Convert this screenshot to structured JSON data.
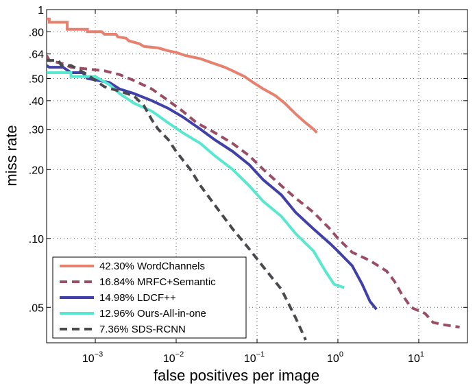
{
  "chart_data": {
    "type": "line",
    "xscale": "log",
    "yscale": "log",
    "xlabel": "false positives per image",
    "ylabel": "miss rate",
    "xlim": [
      0.00025,
      40
    ],
    "ylim": [
      0.035,
      1
    ],
    "x_ticks": [
      {
        "value": 0.001,
        "base": "10",
        "exp": "−3"
      },
      {
        "value": 0.01,
        "base": "10",
        "exp": "−2"
      },
      {
        "value": 0.1,
        "base": "10",
        "exp": "−1"
      },
      {
        "value": 1,
        "base": "10",
        "exp": "0"
      },
      {
        "value": 10,
        "base": "10",
        "exp": "1"
      }
    ],
    "y_ticks": [
      {
        "value": 1,
        "label": "1"
      },
      {
        "value": 0.8,
        "label": ".80"
      },
      {
        "value": 0.64,
        "label": ".64"
      },
      {
        "value": 0.5,
        "label": ".50"
      },
      {
        "value": 0.4,
        "label": ".40"
      },
      {
        "value": 0.3,
        "label": ".30"
      },
      {
        "value": 0.2,
        "label": ".20"
      },
      {
        "value": 0.1,
        "label": ".10"
      },
      {
        "value": 0.05,
        "label": ".05"
      }
    ],
    "series": [
      {
        "name": "42.30% WordChannels",
        "color": "#e8806e",
        "dash": "solid",
        "points": [
          [
            0.00025,
            0.91
          ],
          [
            0.00027,
            0.91
          ],
          [
            0.00027,
            0.88
          ],
          [
            0.00045,
            0.88
          ],
          [
            0.00045,
            0.82
          ],
          [
            0.0008,
            0.82
          ],
          [
            0.0008,
            0.8
          ],
          [
            0.0012,
            0.8
          ],
          [
            0.0013,
            0.78
          ],
          [
            0.0018,
            0.78
          ],
          [
            0.0019,
            0.76
          ],
          [
            0.0024,
            0.75
          ],
          [
            0.0026,
            0.73
          ],
          [
            0.0035,
            0.71
          ],
          [
            0.004,
            0.69
          ],
          [
            0.006,
            0.68
          ],
          [
            0.008,
            0.66
          ],
          [
            0.01,
            0.65
          ],
          [
            0.013,
            0.63
          ],
          [
            0.02,
            0.61
          ],
          [
            0.03,
            0.58
          ],
          [
            0.04,
            0.56
          ],
          [
            0.05,
            0.54
          ],
          [
            0.07,
            0.51
          ],
          [
            0.09,
            0.48
          ],
          [
            0.12,
            0.45
          ],
          [
            0.17,
            0.42
          ],
          [
            0.22,
            0.39
          ],
          [
            0.3,
            0.35
          ],
          [
            0.4,
            0.32
          ],
          [
            0.5,
            0.3
          ],
          [
            0.55,
            0.29
          ]
        ]
      },
      {
        "name": "16.84% MRFC+Semantic",
        "color": "#9a4e64",
        "dash": "dashed",
        "points": [
          [
            0.00025,
            0.63
          ],
          [
            0.00027,
            0.6
          ],
          [
            0.0004,
            0.58
          ],
          [
            0.0005,
            0.56
          ],
          [
            0.0013,
            0.54
          ],
          [
            0.002,
            0.52
          ],
          [
            0.003,
            0.49
          ],
          [
            0.005,
            0.45
          ],
          [
            0.008,
            0.4
          ],
          [
            0.012,
            0.36
          ],
          [
            0.018,
            0.32
          ],
          [
            0.03,
            0.29
          ],
          [
            0.05,
            0.26
          ],
          [
            0.08,
            0.23
          ],
          [
            0.12,
            0.2
          ],
          [
            0.2,
            0.17
          ],
          [
            0.3,
            0.15
          ],
          [
            0.5,
            0.13
          ],
          [
            0.8,
            0.11
          ],
          [
            1.0,
            0.1
          ],
          [
            1.5,
            0.087
          ],
          [
            2.5,
            0.08
          ],
          [
            4.0,
            0.072
          ],
          [
            5.0,
            0.065
          ],
          [
            6.0,
            0.058
          ],
          [
            8.0,
            0.05
          ],
          [
            12,
            0.047
          ],
          [
            15,
            0.043
          ],
          [
            20,
            0.042
          ],
          [
            32,
            0.041
          ]
        ]
      },
      {
        "name": "14.98% LDCF++",
        "color": "#4040a8",
        "dash": "solid",
        "points": [
          [
            0.00025,
            0.57
          ],
          [
            0.00027,
            0.56
          ],
          [
            0.0004,
            0.56
          ],
          [
            0.0005,
            0.53
          ],
          [
            0.0007,
            0.53
          ],
          [
            0.0008,
            0.5
          ],
          [
            0.0015,
            0.48
          ],
          [
            0.002,
            0.45
          ],
          [
            0.003,
            0.43
          ],
          [
            0.005,
            0.4
          ],
          [
            0.008,
            0.37
          ],
          [
            0.012,
            0.34
          ],
          [
            0.02,
            0.3
          ],
          [
            0.03,
            0.27
          ],
          [
            0.05,
            0.24
          ],
          [
            0.08,
            0.21
          ],
          [
            0.12,
            0.18
          ],
          [
            0.2,
            0.155
          ],
          [
            0.3,
            0.13
          ],
          [
            0.5,
            0.11
          ],
          [
            0.8,
            0.095
          ],
          [
            1.0,
            0.088
          ],
          [
            1.5,
            0.076
          ],
          [
            2.0,
            0.063
          ],
          [
            2.5,
            0.053
          ],
          [
            3.0,
            0.049
          ]
        ]
      },
      {
        "name": "12.96% Ours-All-in-one",
        "color": "#58e8d0",
        "dash": "solid",
        "points": [
          [
            0.00025,
            0.53
          ],
          [
            0.0005,
            0.53
          ],
          [
            0.0005,
            0.51
          ],
          [
            0.001,
            0.51
          ],
          [
            0.0015,
            0.47
          ],
          [
            0.002,
            0.43
          ],
          [
            0.003,
            0.39
          ],
          [
            0.005,
            0.36
          ],
          [
            0.008,
            0.32
          ],
          [
            0.012,
            0.29
          ],
          [
            0.02,
            0.26
          ],
          [
            0.03,
            0.23
          ],
          [
            0.05,
            0.2
          ],
          [
            0.08,
            0.17
          ],
          [
            0.12,
            0.145
          ],
          [
            0.2,
            0.125
          ],
          [
            0.3,
            0.105
          ],
          [
            0.5,
            0.088
          ],
          [
            0.7,
            0.072
          ],
          [
            0.9,
            0.063
          ],
          [
            1.2,
            0.061
          ]
        ]
      },
      {
        "name": "7.36% SDS-RCNN",
        "color": "#4a4a4e",
        "dash": "dashed",
        "points": [
          [
            0.00025,
            0.6
          ],
          [
            0.00035,
            0.6
          ],
          [
            0.00038,
            0.57
          ],
          [
            0.0005,
            0.57
          ],
          [
            0.0006,
            0.55
          ],
          [
            0.0008,
            0.52
          ],
          [
            0.001,
            0.49
          ],
          [
            0.0013,
            0.46
          ],
          [
            0.002,
            0.44
          ],
          [
            0.003,
            0.42
          ],
          [
            0.004,
            0.38
          ],
          [
            0.005,
            0.33
          ],
          [
            0.006,
            0.3
          ],
          [
            0.008,
            0.27
          ],
          [
            0.01,
            0.24
          ],
          [
            0.015,
            0.2
          ],
          [
            0.02,
            0.17
          ],
          [
            0.03,
            0.14
          ],
          [
            0.05,
            0.11
          ],
          [
            0.08,
            0.09
          ],
          [
            0.12,
            0.075
          ],
          [
            0.2,
            0.06
          ],
          [
            0.3,
            0.045
          ],
          [
            0.4,
            0.036
          ]
        ]
      }
    ],
    "legend": {
      "position": "bottom-left"
    }
  }
}
